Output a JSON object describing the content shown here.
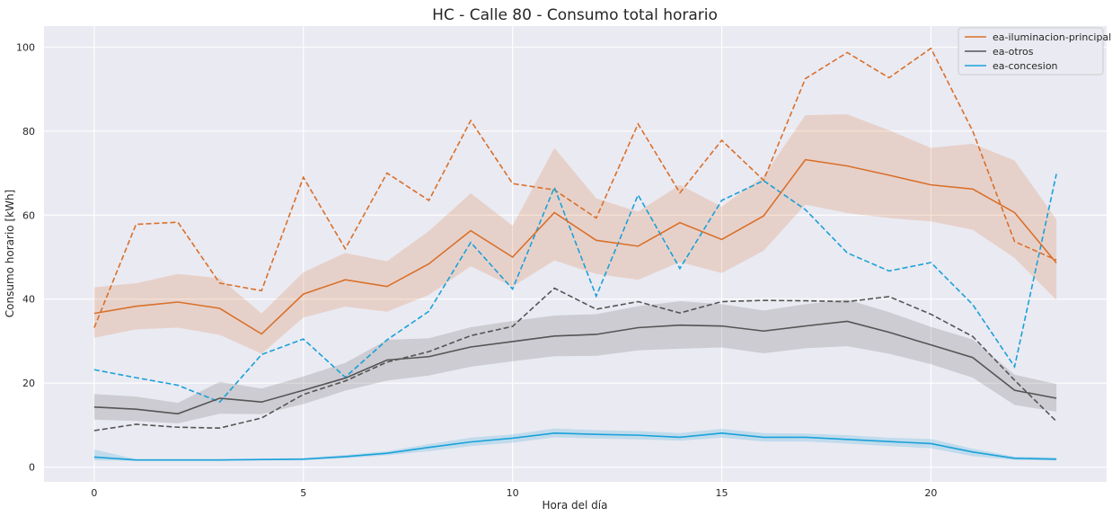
{
  "chart_data": {
    "type": "line",
    "title": "HC - Calle 80 - Consumo total horario",
    "xlabel": "Hora del día",
    "ylabel": "Consumo horario [kWh]",
    "xlim": [
      -1.2,
      24.2
    ],
    "ylim": [
      -3.5,
      105
    ],
    "x_ticks": [
      0,
      5,
      10,
      15,
      20
    ],
    "y_ticks": [
      0,
      20,
      40,
      60,
      80,
      100
    ],
    "grid": true,
    "legend_position": "top-right",
    "background_color": "#eaeaf2",
    "x": [
      0,
      1,
      2,
      3,
      4,
      5,
      6,
      7,
      8,
      9,
      10,
      11,
      12,
      13,
      14,
      15,
      16,
      17,
      18,
      19,
      20,
      21,
      22,
      23
    ],
    "series": [
      {
        "name": "ea-iluminacion-principal",
        "color": "#d9702b",
        "mean": [
          36.6,
          38.3,
          39.3,
          37.8,
          31.7,
          41.2,
          44.6,
          43.0,
          48.4,
          56.3,
          50.0,
          60.6,
          54.0,
          52.6,
          58.2,
          54.2,
          59.8,
          73.2,
          71.7,
          69.5,
          67.2,
          66.2,
          60.6,
          48.6
        ],
        "ci_lower": [
          30.8,
          32.8,
          33.2,
          31.5,
          27.0,
          35.6,
          38.2,
          37.0,
          41.0,
          47.8,
          43.0,
          49.2,
          46.0,
          44.6,
          48.8,
          46.2,
          51.5,
          62.5,
          60.5,
          59.3,
          58.5,
          56.5,
          49.8,
          39.8
        ],
        "ci_upper": [
          42.8,
          43.8,
          46.0,
          45.0,
          36.6,
          46.4,
          51.0,
          49.0,
          56.2,
          65.2,
          57.5,
          76.0,
          64.0,
          60.8,
          67.2,
          62.0,
          69.3,
          83.8,
          84.0,
          80.2,
          76.0,
          77.0,
          73.0,
          59.0
        ],
        "reference": [
          33.2,
          57.8,
          58.3,
          43.8,
          42.0,
          69.0,
          52.0,
          70.0,
          63.5,
          82.5,
          67.5,
          66.0,
          59.3,
          81.7,
          65.3,
          77.8,
          68.3,
          92.5,
          98.7,
          92.7,
          99.7,
          80.0,
          53.7,
          49.3
        ]
      },
      {
        "name": "ea-otros",
        "color": "#555555",
        "mean": [
          14.3,
          13.8,
          12.7,
          16.4,
          15.5,
          18.3,
          21.2,
          25.5,
          26.3,
          28.6,
          29.9,
          31.2,
          31.6,
          33.2,
          33.8,
          33.6,
          32.4,
          33.6,
          34.7,
          32.1,
          29.1,
          26.1,
          18.3,
          16.4
        ],
        "ci_lower": [
          11.3,
          11.0,
          10.4,
          12.7,
          12.6,
          15.0,
          18.2,
          20.6,
          21.8,
          23.9,
          25.2,
          26.4,
          26.5,
          27.8,
          28.2,
          28.5,
          27.1,
          28.3,
          28.8,
          27.0,
          24.5,
          21.3,
          14.8,
          13.2
        ],
        "ci_upper": [
          17.4,
          16.8,
          15.3,
          20.3,
          18.7,
          21.6,
          24.8,
          30.3,
          30.7,
          33.3,
          34.8,
          36.1,
          36.4,
          38.3,
          39.5,
          38.8,
          37.3,
          38.8,
          39.9,
          36.9,
          33.4,
          30.4,
          22.0,
          19.8
        ],
        "reference": [
          8.7,
          10.2,
          9.5,
          9.3,
          11.7,
          17.3,
          20.5,
          25.0,
          27.5,
          31.3,
          33.5,
          42.6,
          37.6,
          39.4,
          36.7,
          39.4,
          39.7,
          39.6,
          39.4,
          40.6,
          36.4,
          31.1,
          20.7,
          10.9
        ]
      },
      {
        "name": "ea-concesion",
        "color": "#1aa1d9",
        "mean": [
          2.4,
          1.7,
          1.7,
          1.7,
          1.8,
          1.9,
          2.5,
          3.3,
          4.7,
          6.0,
          6.9,
          8.1,
          7.8,
          7.6,
          7.1,
          8.1,
          7.1,
          7.1,
          6.6,
          6.1,
          5.6,
          3.6,
          2.1,
          1.9
        ],
        "ci_lower": [
          1.6,
          1.5,
          1.5,
          1.5,
          1.6,
          1.7,
          2.1,
          2.8,
          3.8,
          5.0,
          5.8,
          7.1,
          6.8,
          6.6,
          6.3,
          7.0,
          6.1,
          6.1,
          5.6,
          5.0,
          4.5,
          2.6,
          1.7,
          1.6
        ],
        "ci_upper": [
          4.2,
          1.9,
          1.9,
          1.9,
          2.0,
          2.2,
          2.9,
          3.8,
          5.5,
          7.0,
          7.8,
          9.2,
          8.8,
          8.6,
          8.1,
          9.1,
          8.1,
          8.0,
          7.6,
          7.0,
          6.7,
          4.4,
          2.5,
          2.3
        ],
        "reference": [
          23.2,
          21.3,
          19.5,
          15.5,
          26.8,
          30.5,
          21.4,
          30.3,
          37.1,
          53.5,
          42.4,
          66.6,
          40.7,
          64.8,
          47.3,
          63.5,
          68.2,
          61.3,
          51.0,
          46.7,
          48.7,
          38.7,
          23.9,
          69.8
        ]
      }
    ]
  }
}
